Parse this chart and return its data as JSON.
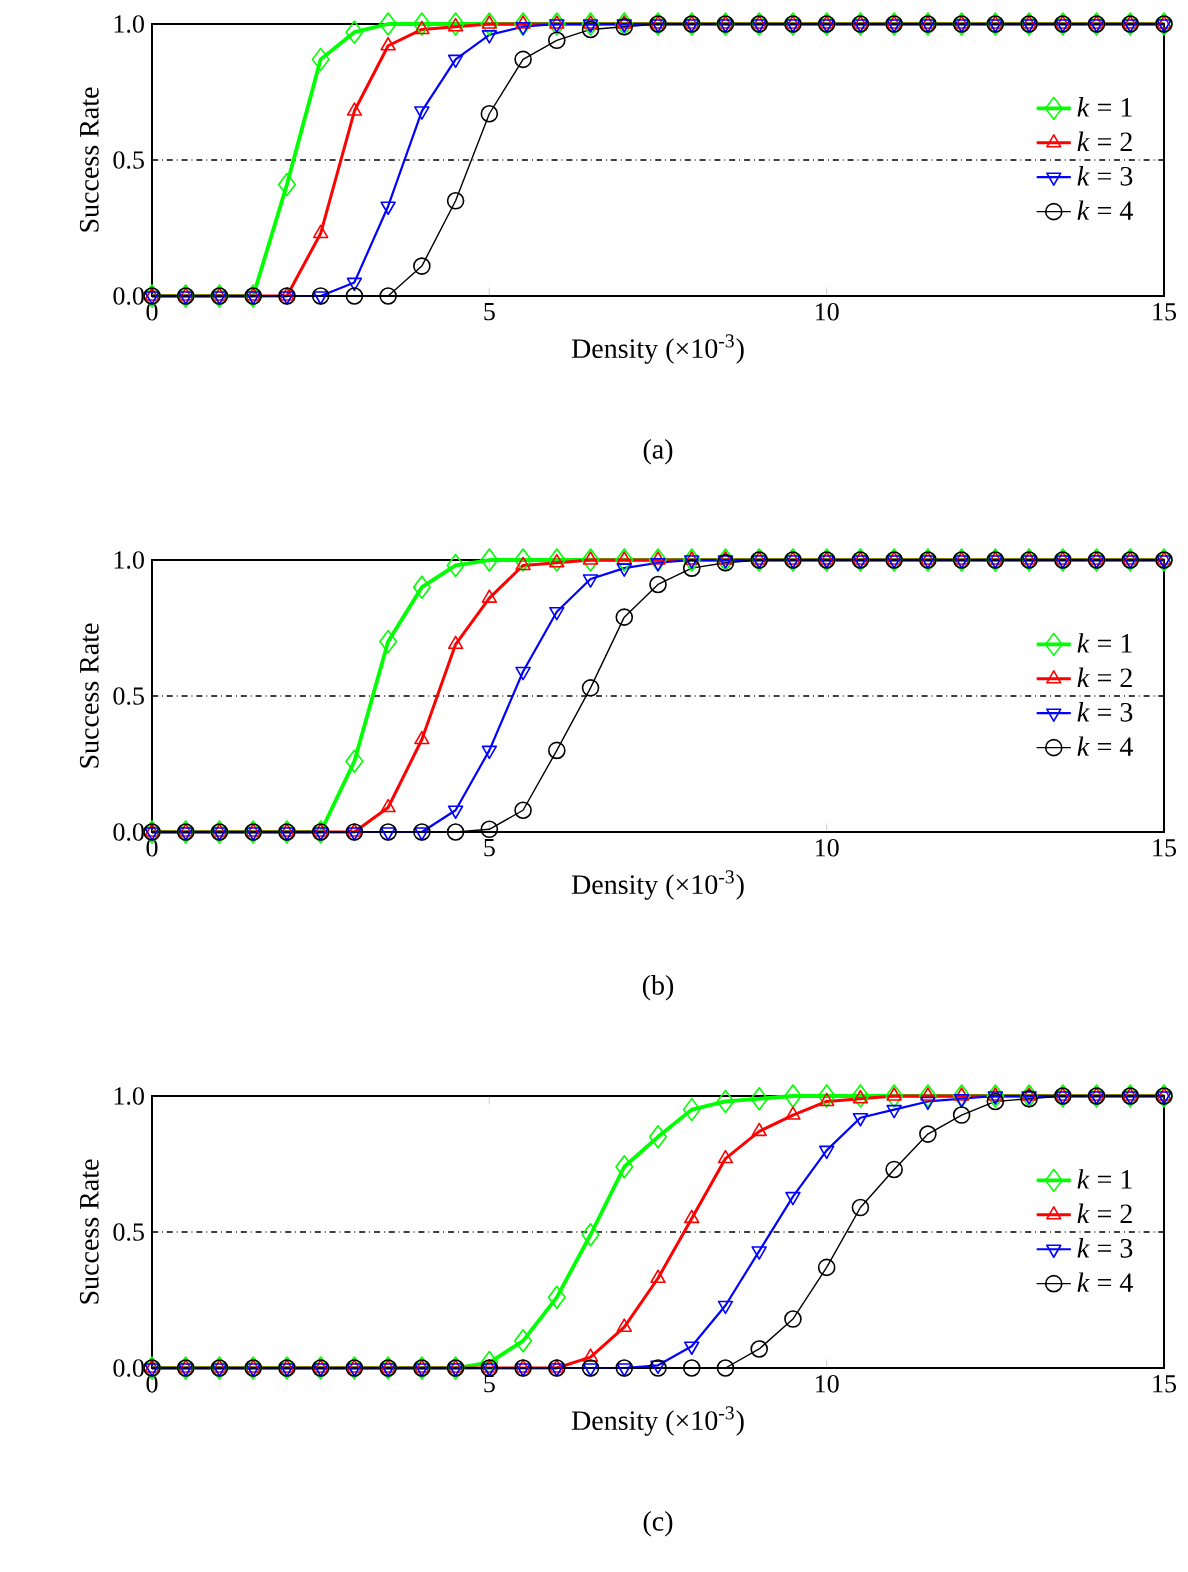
{
  "chart_data": [
    {
      "type": "line",
      "xlabel": "Density (×10$^{-3}$)",
      "ylabel": "Success Rate",
      "annotations": [
        "(a)"
      ],
      "x": [
        0,
        0.5,
        1,
        1.5,
        2,
        2.5,
        3,
        3.5,
        4,
        4.5,
        5,
        5.5,
        6,
        6.5,
        7,
        7.5,
        8,
        8.5,
        9,
        9.5,
        10,
        10.5,
        11,
        11.5,
        12,
        12.5,
        13,
        13.5,
        14,
        14.5,
        15
      ],
      "xlim": [
        0,
        15
      ],
      "xticks": [
        0,
        5,
        10,
        15
      ],
      "ylim": [
        0,
        1
      ],
      "yticks": [
        {
          "value": 0,
          "label": "0.0"
        },
        {
          "value": 0.5,
          "label": "0.5"
        },
        {
          "value": 1,
          "label": "1.0"
        }
      ],
      "grid": false,
      "legend": "right",
      "line_style": "solid",
      "ref_lines": [
        {
          "axis": "y",
          "value": 0.5,
          "line_style": "dashdot",
          "color": "#000000"
        }
      ],
      "series": [
        {
          "name": "*k* = 1",
          "color": "#00ff00",
          "marker": "diamond",
          "values": [
            0,
            0,
            0,
            0,
            0.41,
            0.87,
            0.97,
            1,
            1,
            1,
            1,
            1,
            1,
            1,
            1,
            1,
            1,
            1,
            1,
            1,
            1,
            1,
            1,
            1,
            1,
            1,
            1,
            1,
            1,
            1,
            1
          ]
        },
        {
          "name": "*k* = 2",
          "color": "#ff0000",
          "marker": "triangle",
          "values": [
            0,
            0,
            0,
            0,
            0,
            0.23,
            0.68,
            0.92,
            0.98,
            0.99,
            1,
            1,
            1,
            1,
            1,
            1,
            1,
            1,
            1,
            1,
            1,
            1,
            1,
            1,
            1,
            1,
            1,
            1,
            1,
            1,
            1
          ]
        },
        {
          "name": "*k* = 3",
          "color": "#0000ff",
          "marker": "triangle_down",
          "values": [
            0,
            0,
            0,
            0,
            0,
            0,
            0.05,
            0.33,
            0.68,
            0.87,
            0.96,
            0.99,
            1,
            1,
            1,
            1,
            1,
            1,
            1,
            1,
            1,
            1,
            1,
            1,
            1,
            1,
            1,
            1,
            1,
            1,
            1
          ]
        },
        {
          "name": "*k* = 4",
          "color": "#000000",
          "marker": "circle",
          "values": [
            0,
            0,
            0,
            0,
            0,
            0,
            0,
            0,
            0.11,
            0.35,
            0.67,
            0.87,
            0.94,
            0.98,
            0.99,
            1,
            1,
            1,
            1,
            1,
            1,
            1,
            1,
            1,
            1,
            1,
            1,
            1,
            1,
            1,
            1
          ]
        }
      ]
    },
    {
      "type": "line",
      "xlabel": "Density (×10$^{-3}$)",
      "ylabel": "Success Rate",
      "annotations": [
        "(b)"
      ],
      "x": [
        0,
        0.5,
        1,
        1.5,
        2,
        2.5,
        3,
        3.5,
        4,
        4.5,
        5,
        5.5,
        6,
        6.5,
        7,
        7.5,
        8,
        8.5,
        9,
        9.5,
        10,
        10.5,
        11,
        11.5,
        12,
        12.5,
        13,
        13.5,
        14,
        14.5,
        15
      ],
      "xlim": [
        0,
        15
      ],
      "xticks": [
        0,
        5,
        10,
        15
      ],
      "ylim": [
        0,
        1
      ],
      "yticks": [
        {
          "value": 0,
          "label": "0.0"
        },
        {
          "value": 0.5,
          "label": "0.5"
        },
        {
          "value": 1,
          "label": "1.0"
        }
      ],
      "grid": false,
      "legend": "right",
      "line_style": "solid",
      "ref_lines": [
        {
          "axis": "y",
          "value": 0.5,
          "line_style": "dashdot",
          "color": "#000000"
        }
      ],
      "series": [
        {
          "name": "*k* = 1",
          "color": "#00ff00",
          "marker": "diamond",
          "values": [
            0,
            0,
            0,
            0,
            0,
            0,
            0.26,
            0.7,
            0.9,
            0.98,
            1,
            1,
            1,
            1,
            1,
            1,
            1,
            1,
            1,
            1,
            1,
            1,
            1,
            1,
            1,
            1,
            1,
            1,
            1,
            1,
            1
          ]
        },
        {
          "name": "*k* = 2",
          "color": "#ff0000",
          "marker": "triangle",
          "values": [
            0,
            0,
            0,
            0,
            0,
            0,
            0,
            0.09,
            0.34,
            0.69,
            0.86,
            0.98,
            0.99,
            1,
            1,
            1,
            1,
            1,
            1,
            1,
            1,
            1,
            1,
            1,
            1,
            1,
            1,
            1,
            1,
            1,
            1
          ]
        },
        {
          "name": "*k* = 3",
          "color": "#0000ff",
          "marker": "triangle_down",
          "values": [
            0,
            0,
            0,
            0,
            0,
            0,
            0,
            0,
            0,
            0.08,
            0.3,
            0.59,
            0.81,
            0.93,
            0.97,
            0.99,
            1,
            1,
            1,
            1,
            1,
            1,
            1,
            1,
            1,
            1,
            1,
            1,
            1,
            1,
            1
          ]
        },
        {
          "name": "*k* = 4",
          "color": "#000000",
          "marker": "circle",
          "values": [
            0,
            0,
            0,
            0,
            0,
            0,
            0,
            0,
            0,
            0,
            0.01,
            0.08,
            0.3,
            0.53,
            0.79,
            0.91,
            0.97,
            0.99,
            1,
            1,
            1,
            1,
            1,
            1,
            1,
            1,
            1,
            1,
            1,
            1,
            1
          ]
        }
      ]
    },
    {
      "type": "line",
      "xlabel": "Density (×10$^{-3}$)",
      "ylabel": "Success Rate",
      "annotations": [
        "(c)"
      ],
      "x": [
        0,
        0.5,
        1,
        1.5,
        2,
        2.5,
        3,
        3.5,
        4,
        4.5,
        5,
        5.5,
        6,
        6.5,
        7,
        7.5,
        8,
        8.5,
        9,
        9.5,
        10,
        10.5,
        11,
        11.5,
        12,
        12.5,
        13,
        13.5,
        14,
        14.5,
        15
      ],
      "xlim": [
        0,
        15
      ],
      "xticks": [
        0,
        5,
        10,
        15
      ],
      "ylim": [
        0,
        1
      ],
      "yticks": [
        {
          "value": 0,
          "label": "0.0"
        },
        {
          "value": 0.5,
          "label": "0.5"
        },
        {
          "value": 1,
          "label": "1.0"
        }
      ],
      "grid": false,
      "legend": "right",
      "line_style": "solid",
      "ref_lines": [
        {
          "axis": "y",
          "value": 0.5,
          "line_style": "dashdot",
          "color": "#000000"
        }
      ],
      "series": [
        {
          "name": "*k* = 1",
          "color": "#00ff00",
          "marker": "diamond",
          "values": [
            0,
            0,
            0,
            0,
            0,
            0,
            0,
            0,
            0,
            0,
            0.02,
            0.1,
            0.26,
            0.49,
            0.74,
            0.85,
            0.95,
            0.98,
            0.99,
            1,
            1,
            1,
            1,
            1,
            1,
            1,
            1,
            1,
            1,
            1,
            1
          ]
        },
        {
          "name": "*k* = 2",
          "color": "#ff0000",
          "marker": "triangle",
          "values": [
            0,
            0,
            0,
            0,
            0,
            0,
            0,
            0,
            0,
            0,
            0,
            0,
            0,
            0.04,
            0.15,
            0.33,
            0.55,
            0.77,
            0.87,
            0.93,
            0.98,
            0.99,
            1,
            1,
            1,
            1,
            1,
            1,
            1,
            1,
            1
          ]
        },
        {
          "name": "*k* = 3",
          "color": "#0000ff",
          "marker": "triangle_down",
          "values": [
            0,
            0,
            0,
            0,
            0,
            0,
            0,
            0,
            0,
            0,
            0,
            0,
            0,
            0,
            0,
            0.01,
            0.08,
            0.23,
            0.43,
            0.63,
            0.8,
            0.92,
            0.95,
            0.98,
            0.99,
            1,
            1,
            1,
            1,
            1,
            1
          ]
        },
        {
          "name": "*k* = 4",
          "color": "#000000",
          "marker": "circle",
          "values": [
            0,
            0,
            0,
            0,
            0,
            0,
            0,
            0,
            0,
            0,
            0,
            0,
            0,
            0,
            0,
            0,
            0,
            0,
            0.07,
            0.18,
            0.37,
            0.59,
            0.73,
            0.86,
            0.93,
            0.98,
            0.99,
            1,
            1,
            1,
            1
          ]
        }
      ]
    }
  ]
}
